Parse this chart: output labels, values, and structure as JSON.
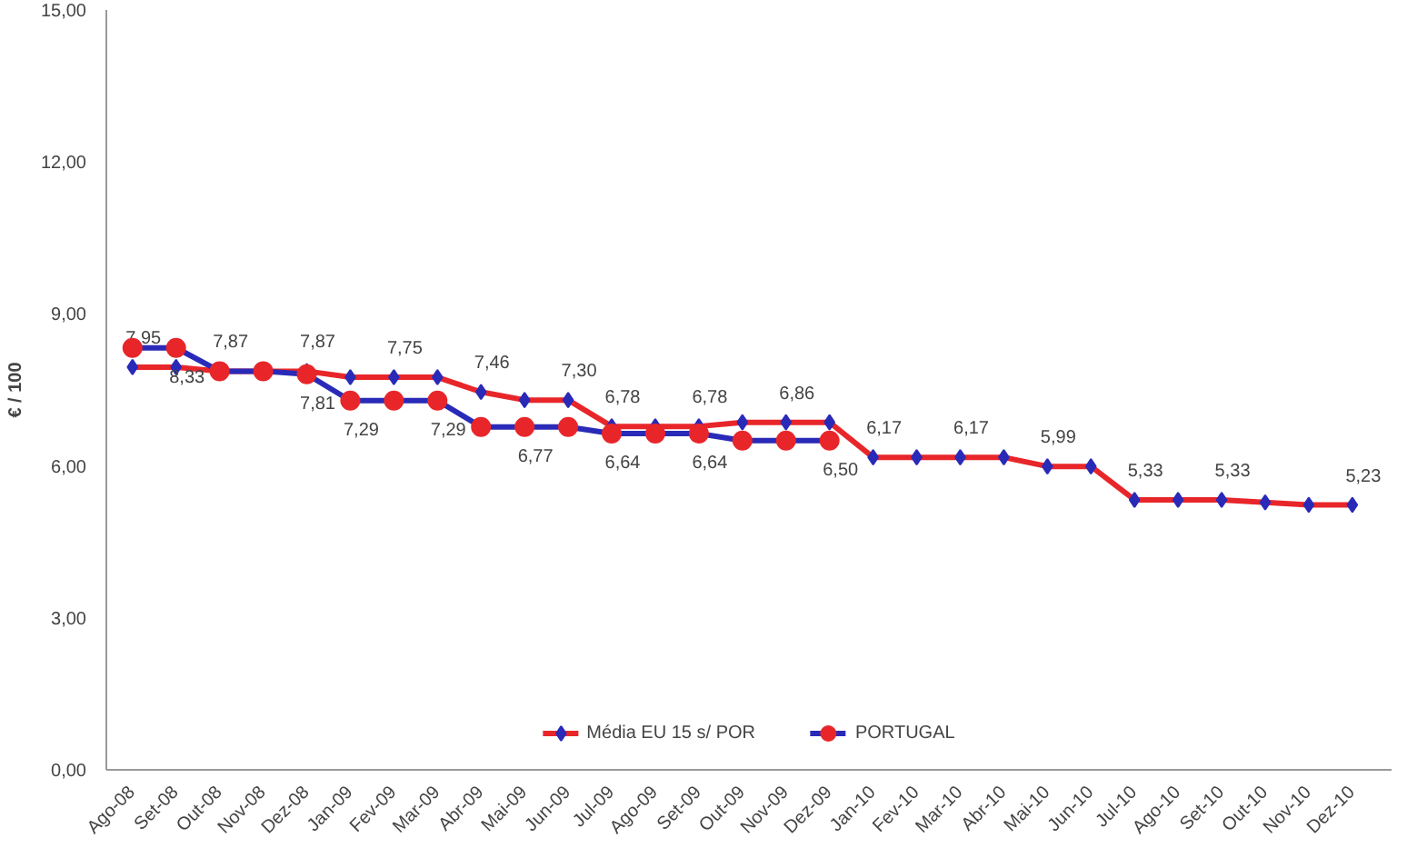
{
  "chart_data": {
    "type": "line",
    "ylabel": "€ / 100",
    "categories": [
      "Ago-08",
      "Set-08",
      "Out-08",
      "Nov-08",
      "Dez-08",
      "Jan-09",
      "Fev-09",
      "Mar-09",
      "Abr-09",
      "Mai-09",
      "Jun-09",
      "Jul-09",
      "Ago-09",
      "Set-09",
      "Out-09",
      "Nov-09",
      "Dez-09",
      "Jan-10",
      "Fev-10",
      "Mar-10",
      "Abr-10",
      "Mai-10",
      "Jun-10",
      "Jul-10",
      "Ago-10",
      "Set-10",
      "Out-10",
      "Nov-10",
      "Dez-10"
    ],
    "ylim": [
      0,
      15
    ],
    "yticks": [
      {
        "value": 0,
        "label": "0,00"
      },
      {
        "value": 3,
        "label": "3,00"
      },
      {
        "value": 6,
        "label": "6,00"
      },
      {
        "value": 9,
        "label": "9,00"
      },
      {
        "value": 12,
        "label": "12,00"
      },
      {
        "value": 15,
        "label": "15,00"
      }
    ],
    "grid": false,
    "legend": "bottom",
    "line_style": "solid",
    "series": [
      {
        "name": "Média EU 15 s/ POR",
        "color": "#e8262a",
        "marker": "diamond",
        "values": [
          7.95,
          7.95,
          7.87,
          7.87,
          7.87,
          7.75,
          7.75,
          7.75,
          7.46,
          7.3,
          7.3,
          6.78,
          6.78,
          6.78,
          6.86,
          6.86,
          6.86,
          6.17,
          6.17,
          6.17,
          6.17,
          5.99,
          5.99,
          5.33,
          5.33,
          5.33,
          5.28,
          5.23,
          5.23
        ],
        "value_labels": [
          "7,95",
          null,
          "7,87",
          null,
          "7,87",
          null,
          "7,75",
          null,
          "7,46",
          null,
          "7,30",
          "6,78",
          null,
          "6,78",
          null,
          "6,86",
          null,
          "6,17",
          null,
          "6,17",
          null,
          "5,99",
          null,
          "5,33",
          null,
          "5,33",
          null,
          null,
          "5,23"
        ]
      },
      {
        "name": "PORTUGAL",
        "color": "#2a2ab8",
        "marker": "circle",
        "values": [
          8.33,
          8.33,
          7.87,
          7.87,
          7.81,
          7.29,
          7.29,
          7.29,
          6.77,
          6.77,
          6.77,
          6.64,
          6.64,
          6.64,
          6.5,
          6.5,
          6.5,
          null,
          null,
          null,
          null,
          null,
          null,
          null,
          null,
          null,
          null,
          null,
          null
        ],
        "value_labels": [
          null,
          "8,33",
          null,
          null,
          "7,81",
          "7,29",
          null,
          "7,29",
          null,
          "6,77",
          null,
          "6,64",
          null,
          "6,64",
          null,
          null,
          "6,50",
          null,
          null,
          null,
          null,
          null,
          null,
          null,
          null,
          null,
          null,
          null,
          null
        ]
      }
    ]
  }
}
